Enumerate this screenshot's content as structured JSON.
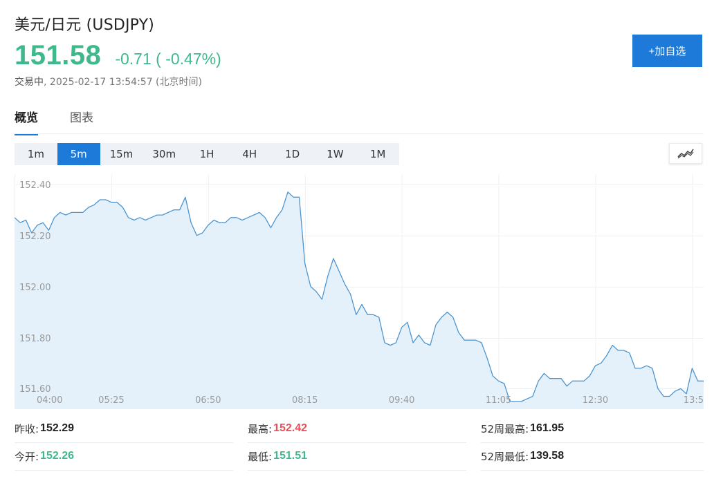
{
  "header": {
    "title": "美元/日元  (USDJPY)",
    "price": "151.58",
    "change": "-0.71 ( -0.47%)",
    "status": "交易中",
    "timestamp": "2025-02-17 13:54:57 (北京时间)",
    "add_button": "+加自选"
  },
  "tabs": [
    {
      "label": "概览",
      "active": true
    },
    {
      "label": "图表",
      "active": false
    }
  ],
  "ranges": [
    {
      "label": "1m",
      "active": false
    },
    {
      "label": "5m",
      "active": true
    },
    {
      "label": "15m",
      "active": false
    },
    {
      "label": "30m",
      "active": false
    },
    {
      "label": "1H",
      "active": false
    },
    {
      "label": "4H",
      "active": false
    },
    {
      "label": "1D",
      "active": false
    },
    {
      "label": "1W",
      "active": false
    },
    {
      "label": "1M",
      "active": false
    }
  ],
  "chart_type_icon": "line-chart-icon",
  "colors": {
    "up": "#3fb98c",
    "down": "#e84f5a",
    "accent": "#1d7ad9",
    "line": "#4d95d0",
    "area": "#e3f0fb"
  },
  "chart_data": {
    "type": "area",
    "x_ticks": [
      "04:00",
      "05:25",
      "06:50",
      "08:15",
      "09:40",
      "11:05",
      "12:30",
      "13:5"
    ],
    "y_ticks": [
      "152.40",
      "152.20",
      "152.00",
      "151.80",
      "151.60"
    ],
    "ylim": [
      151.52,
      152.44
    ],
    "y_tick_values": [
      152.4,
      152.2,
      152.0,
      151.8,
      151.6
    ],
    "x_tick_index": [
      0,
      17,
      34,
      51,
      68,
      85,
      102,
      119
    ],
    "values": [
      152.27,
      152.25,
      152.26,
      152.21,
      152.24,
      152.25,
      152.22,
      152.27,
      152.29,
      152.28,
      152.29,
      152.29,
      152.29,
      152.31,
      152.32,
      152.34,
      152.34,
      152.33,
      152.33,
      152.31,
      152.27,
      152.26,
      152.27,
      152.26,
      152.27,
      152.28,
      152.28,
      152.29,
      152.3,
      152.3,
      152.35,
      152.25,
      152.2,
      152.21,
      152.24,
      152.26,
      152.25,
      152.25,
      152.27,
      152.27,
      152.26,
      152.27,
      152.28,
      152.29,
      152.27,
      152.23,
      152.27,
      152.3,
      152.37,
      152.35,
      152.35,
      152.09,
      152.0,
      151.98,
      151.95,
      152.04,
      152.11,
      152.06,
      152.01,
      151.97,
      151.89,
      151.93,
      151.89,
      151.89,
      151.88,
      151.78,
      151.77,
      151.78,
      151.84,
      151.86,
      151.78,
      151.81,
      151.78,
      151.77,
      151.85,
      151.88,
      151.9,
      151.88,
      151.82,
      151.79,
      151.79,
      151.79,
      151.78,
      151.72,
      151.65,
      151.63,
      151.62,
      151.55,
      151.55,
      151.55,
      151.56,
      151.57,
      151.63,
      151.66,
      151.64,
      151.64,
      151.64,
      151.61,
      151.63,
      151.63,
      151.63,
      151.65,
      151.69,
      151.7,
      151.73,
      151.77,
      151.75,
      151.75,
      151.74,
      151.68,
      151.68,
      151.69,
      151.68,
      151.6,
      151.57,
      151.57,
      151.59,
      151.6,
      151.58,
      151.68,
      151.63,
      151.63,
      151.58,
      151.58
    ]
  },
  "stats": [
    {
      "label": "昨收:",
      "value": "152.29",
      "color": "#222222"
    },
    {
      "label": "最高:",
      "value": "152.42",
      "color": "#e84f5a"
    },
    {
      "label": "52周最高:",
      "value": "161.95",
      "color": "#222222"
    },
    {
      "label": "今开:",
      "value": "152.26",
      "color": "#3fb98c"
    },
    {
      "label": "最低:",
      "value": "151.51",
      "color": "#3fb98c"
    },
    {
      "label": "52周最低:",
      "value": "139.58",
      "color": "#222222"
    }
  ]
}
